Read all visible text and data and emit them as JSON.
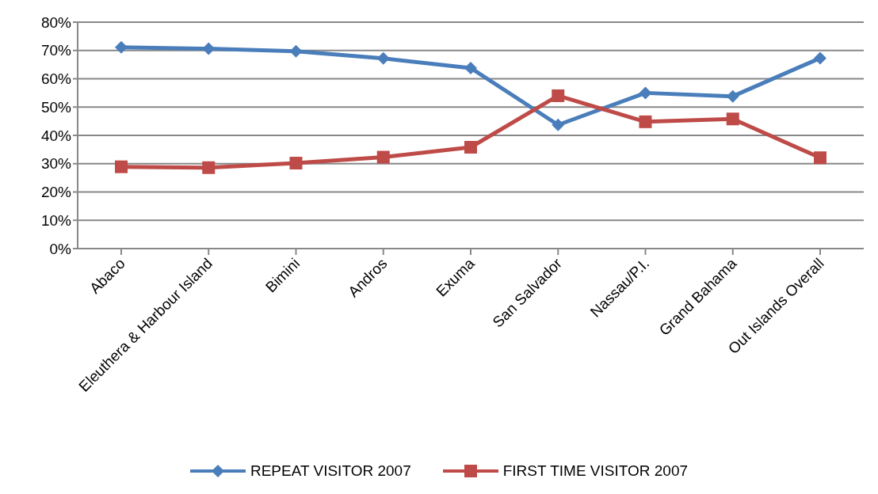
{
  "chart_data": {
    "type": "line",
    "categories": [
      "Abaco",
      "Eleuthera & Harbour Island",
      "Bimini",
      "Andros",
      "Exuma",
      "San Salvador",
      "Nassau/P.I.",
      "Grand Bahama",
      "Out Islands Overall"
    ],
    "series": [
      {
        "name": "REPEAT VISITOR 2007",
        "color": "#4a7ebb",
        "marker": "diamond",
        "values": [
          71.1,
          70.6,
          69.7,
          67.2,
          63.8,
          43.7,
          55.0,
          53.8,
          67.3
        ]
      },
      {
        "name": "FIRST TIME VISITOR 2007",
        "color": "#be4b48",
        "marker": "square",
        "values": [
          28.9,
          28.6,
          30.2,
          32.3,
          35.8,
          54.0,
          44.8,
          45.8,
          32.1
        ]
      }
    ],
    "ylim": [
      0,
      80
    ],
    "yticks": [
      {
        "value": 0,
        "label": "0%"
      },
      {
        "value": 10,
        "label": "10%"
      },
      {
        "value": 20,
        "label": "20%"
      },
      {
        "value": 30,
        "label": "30%"
      },
      {
        "value": 40,
        "label": "40%"
      },
      {
        "value": 50,
        "label": "50%"
      },
      {
        "value": 60,
        "label": "60%"
      },
      {
        "value": 70,
        "label": "70%"
      },
      {
        "value": 80,
        "label": "80%"
      }
    ],
    "grid": "y",
    "legend": "bottom"
  }
}
